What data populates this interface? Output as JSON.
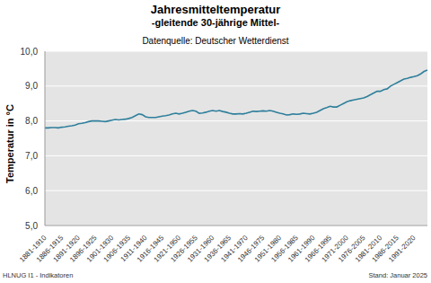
{
  "chart_data": {
    "type": "line",
    "title": "Jahresmitteltemperatur",
    "subtitle": "-gleitende 30-jährige Mittel-",
    "y_label": "Temperatur in °C",
    "annotations": [
      "Datenquelle: Deutscher Wetterdienst",
      "HLNUG I1 - Indikatoren",
      "Stand: Januar 2025"
    ],
    "categories": [
      "1881-1910",
      null,
      null,
      null,
      null,
      "1886-1915",
      null,
      null,
      null,
      null,
      "1891-1920",
      null,
      null,
      null,
      null,
      "1896-1925",
      null,
      null,
      null,
      null,
      "1901-1930",
      null,
      null,
      null,
      null,
      "1906-1935",
      null,
      null,
      null,
      null,
      "1911-1940",
      null,
      null,
      null,
      null,
      "1916-1945",
      null,
      null,
      null,
      null,
      "1921-1950",
      null,
      null,
      null,
      null,
      "1926-1955",
      null,
      null,
      null,
      null,
      "1931-1960",
      null,
      null,
      null,
      null,
      "1936-1965",
      null,
      null,
      null,
      null,
      "1941-1970",
      null,
      null,
      null,
      null,
      "1946-1975",
      null,
      null,
      null,
      null,
      "1951-1980",
      null,
      null,
      null,
      null,
      "1956-1985",
      null,
      null,
      null,
      null,
      "1961-1990",
      null,
      null,
      null,
      null,
      "1966-1995",
      null,
      null,
      null,
      null,
      "1971-2000",
      null,
      null,
      null,
      null,
      "1976-2005",
      null,
      null,
      null,
      null,
      "1981-2010",
      null,
      null,
      null,
      null,
      "1986-2015",
      null,
      null,
      null,
      null,
      "1991-2020",
      null,
      null,
      null,
      null
    ],
    "values": [
      7.8,
      7.8,
      7.81,
      7.81,
      7.8,
      7.82,
      7.83,
      7.85,
      7.86,
      7.88,
      7.92,
      7.93,
      7.95,
      7.98,
      8.0,
      8.0,
      8.0,
      7.99,
      7.98,
      8.0,
      8.02,
      8.04,
      8.03,
      8.04,
      8.05,
      8.07,
      8.1,
      8.15,
      8.2,
      8.18,
      8.12,
      8.1,
      8.1,
      8.1,
      8.12,
      8.14,
      8.15,
      8.17,
      8.2,
      8.22,
      8.2,
      8.22,
      8.25,
      8.28,
      8.3,
      8.28,
      8.22,
      8.23,
      8.25,
      8.28,
      8.3,
      8.28,
      8.3,
      8.27,
      8.25,
      8.22,
      8.2,
      8.2,
      8.21,
      8.2,
      8.22,
      8.25,
      8.28,
      8.27,
      8.28,
      8.29,
      8.28,
      8.3,
      8.28,
      8.25,
      8.22,
      8.2,
      8.17,
      8.18,
      8.2,
      8.19,
      8.2,
      8.22,
      8.21,
      8.2,
      8.22,
      8.25,
      8.3,
      8.35,
      8.38,
      8.42,
      8.4,
      8.4,
      8.45,
      8.5,
      8.55,
      8.58,
      8.6,
      8.62,
      8.64,
      8.66,
      8.7,
      8.75,
      8.8,
      8.85,
      8.85,
      8.9,
      8.92,
      9.0,
      9.05,
      9.1,
      9.15,
      9.2,
      9.22,
      9.25,
      9.27,
      9.3,
      9.35,
      9.42,
      9.46
    ],
    "color": "#2f7f9c",
    "ylim": [
      5,
      10
    ],
    "yticks": [
      {
        "value": 5,
        "label": "5,0"
      },
      {
        "value": 6,
        "label": "6,0"
      },
      {
        "value": 7,
        "label": "7,0"
      },
      {
        "value": 8,
        "label": "8,0"
      },
      {
        "value": 9,
        "label": "9,0"
      },
      {
        "value": 10,
        "label": "10,0"
      }
    ],
    "grid": true
  }
}
